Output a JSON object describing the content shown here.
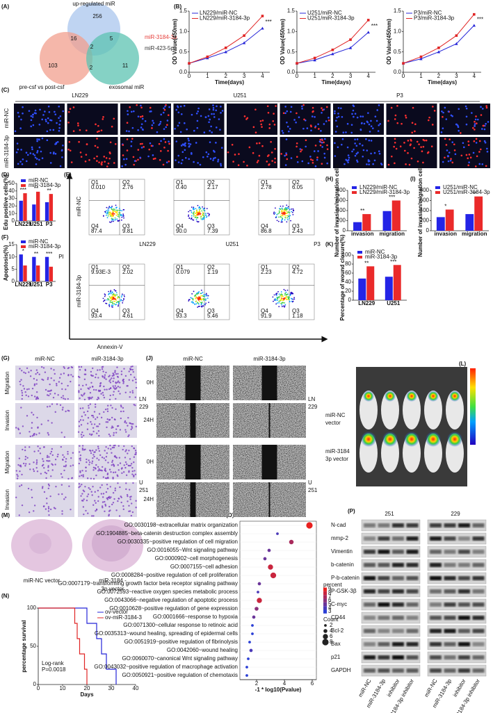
{
  "panel_labels": [
    "(A)",
    "(B)",
    "(C)",
    "(D)",
    "(E)",
    "(F)",
    "(G)",
    "(H)",
    "(I)",
    "(J)",
    "(K)",
    "(L)",
    "(M)",
    "(N)",
    "(O)",
    "(P)"
  ],
  "venn": {
    "sets": [
      "up-regulated miR",
      "pre-csf vs post-csf",
      "exosomal miR"
    ],
    "counts": [
      256,
      16,
      5,
      2,
      103,
      2,
      11
    ],
    "colors": [
      "#a9c6ee",
      "#f29f8e",
      "#5cc3b1"
    ]
  },
  "highlights": [
    {
      "text": "miR-3184-3p",
      "color": "#e53935"
    },
    {
      "text": "miR-423-5p",
      "color": "#333333"
    }
  ],
  "edu_images": {
    "columns": [
      "LN229",
      "U251",
      "P3"
    ],
    "rows": [
      "miR-NC",
      "miR-3184-3p"
    ]
  },
  "flow": {
    "rows": [
      "miR-NC",
      "miR-3184-3p"
    ],
    "columns": [
      "LN229",
      "U251",
      "P3"
    ],
    "ylabel": "PI",
    "xlabel": "Annexin-V",
    "quadrant_names": [
      "Q1",
      "Q2",
      "Q4",
      "Q3"
    ],
    "plots": [
      [
        [
          "0.010",
          "2.76",
          "87.4",
          "9.81"
        ],
        [
          "0.40",
          "2.17",
          "90.0",
          "7.39"
        ],
        [
          "2.78",
          "6.05",
          "86.8",
          "2.43"
        ]
      ],
      [
        [
          "9.93E-3",
          "2.02",
          "93.4",
          "4.61"
        ],
        [
          "0.079",
          "1.19",
          "93.3",
          "5.46"
        ],
        [
          "2.23",
          "4.72",
          "91.9",
          "1.18"
        ]
      ]
    ]
  },
  "transwell": {
    "columns": [
      "miR-NC",
      "miR-3184-3p"
    ],
    "rows": [
      "Migration",
      "Invasion",
      "Migration",
      "Invasion"
    ],
    "cell_lines": [
      [
        "LN",
        "229"
      ],
      [
        "U",
        "251"
      ]
    ]
  },
  "wound": {
    "columns": [
      "miR-NC",
      "miR-3184-3p"
    ],
    "rows": [
      "0H",
      "24H",
      "0H",
      "24H"
    ],
    "cell_lines": [
      [
        "LN",
        "229"
      ],
      [
        "U",
        "251"
      ]
    ]
  },
  "xenograft": {
    "groups": [
      [
        "miR-NC",
        "vector"
      ],
      [
        "miR-3184",
        "3p vector"
      ]
    ]
  },
  "brain": {
    "groups": [
      [
        "miR-NC vector"
      ],
      [
        "miR-3184 -",
        "3p vector"
      ]
    ]
  },
  "western": {
    "cell_lines": [
      "251",
      "229"
    ],
    "proteins": [
      "N-cad",
      "mmp-2",
      "Vimentin",
      "b-catenin",
      "P-b-catenin",
      "P-GSK-3β",
      "C-myc",
      "CD44",
      "Bcl-2",
      "Bax",
      "p21",
      "GAPDH"
    ],
    "lanes": [
      "miR-NC",
      "miR-3184-3p",
      "inhibitor",
      "miR-3184-3p inhibitor",
      "miR-NC",
      "miR-3184-3p",
      "inhibitor",
      "miR-3184-3p inhibitor"
    ]
  },
  "chart_data": [
    {
      "type": "line",
      "x": [
        0,
        1,
        2,
        3,
        4
      ],
      "xlim": [
        0,
        4.4
      ],
      "xticks": [
        0,
        1,
        2,
        3,
        4
      ],
      "ylim": [
        0,
        1.5
      ],
      "yticks": [
        {
          "value": 0,
          "label": "0.0"
        },
        {
          "value": 0.5,
          "label": "0.5"
        },
        {
          "value": 1,
          "label": "1.0"
        },
        {
          "value": 1.5,
          "label": "1.5"
        }
      ],
      "xlabel": "Time(days)",
      "ylabel": "OD Value(450nm)",
      "annotation": "***",
      "series": [
        {
          "name": "LN229/miR-NC",
          "color": "#2424d8",
          "marker": "triangle",
          "values": [
            0.22,
            0.35,
            0.5,
            0.72,
            1.08
          ]
        },
        {
          "name": "LN229/miR-3184-3p",
          "color": "#e02424",
          "marker": "square",
          "values": [
            0.22,
            0.38,
            0.6,
            0.9,
            1.38
          ]
        }
      ]
    },
    {
      "type": "line",
      "x": [
        0,
        1,
        2,
        3,
        4
      ],
      "xlim": [
        0,
        4.4
      ],
      "xticks": [
        0,
        1,
        2,
        3,
        4
      ],
      "ylim": [
        0,
        1.5
      ],
      "yticks": [
        {
          "value": 0,
          "label": "0.0"
        },
        {
          "value": 0.5,
          "label": "0.5"
        },
        {
          "value": 1,
          "label": "1.0"
        },
        {
          "value": 1.5,
          "label": "1.5"
        }
      ],
      "xlabel": "Time(days)",
      "ylabel": "OD Value(450nm)",
      "annotation": "***",
      "series": [
        {
          "name": "U251/miR-NC",
          "color": "#2424d8",
          "marker": "triangle",
          "values": [
            0.22,
            0.3,
            0.45,
            0.6,
            0.98
          ]
        },
        {
          "name": "U251/miR-3184-3p",
          "color": "#e02424",
          "marker": "square",
          "values": [
            0.22,
            0.35,
            0.55,
            0.8,
            1.28
          ]
        }
      ]
    },
    {
      "type": "line",
      "x": [
        0,
        1,
        2,
        3,
        4
      ],
      "xlim": [
        0,
        4.4
      ],
      "xticks": [
        0,
        1,
        2,
        3,
        4
      ],
      "ylim": [
        0,
        1.5
      ],
      "yticks": [
        {
          "value": 0,
          "label": "0.0"
        },
        {
          "value": 0.5,
          "label": "0.5"
        },
        {
          "value": 1,
          "label": "1.0"
        },
        {
          "value": 1.5,
          "label": "1.5"
        }
      ],
      "xlabel": "Time(days)",
      "ylabel": "OD Value(450nm)",
      "annotation": "***",
      "series": [
        {
          "name": "P3/miR-NC",
          "color": "#2424d8",
          "marker": "triangle",
          "values": [
            0.22,
            0.33,
            0.5,
            0.7,
            1.15
          ]
        },
        {
          "name": "P3/miR-3184-3p",
          "color": "#e02424",
          "marker": "square",
          "values": [
            0.22,
            0.38,
            0.6,
            0.9,
            1.42
          ]
        }
      ]
    },
    {
      "type": "bar",
      "categories": [
        "LN229",
        "U251",
        "P3"
      ],
      "ylim": [
        0,
        50
      ],
      "yticks": [
        0,
        10,
        20,
        30,
        40,
        50
      ],
      "ylabel": "Edu positive cells(%)",
      "annotations": [
        "***",
        "**",
        "**"
      ],
      "series": [
        {
          "name": "miR-NC",
          "color": "#2424e6",
          "values": [
            27,
            22,
            25
          ]
        },
        {
          "name": "miR-3184-3p",
          "color": "#ea2a2a",
          "values": [
            37,
            39,
            36
          ]
        }
      ]
    },
    {
      "type": "bar",
      "categories": [
        "LN229",
        "U251",
        "P3"
      ],
      "ylim": [
        0,
        15
      ],
      "yticks": [
        0,
        5,
        10,
        15
      ],
      "ylabel": "Apoptosis(%)",
      "annotations": [
        "*",
        "**",
        "***"
      ],
      "series": [
        {
          "name": "miR-NC",
          "color": "#2424e6",
          "values": [
            11,
            10,
            10
          ]
        },
        {
          "name": "miR-3184-3p",
          "color": "#ea2a2a",
          "values": [
            6.5,
            6.5,
            6
          ]
        }
      ]
    },
    {
      "type": "bar",
      "categories": [
        "invasion",
        "migration"
      ],
      "ylim": [
        0,
        800
      ],
      "yticks": [
        0,
        200,
        400,
        600,
        800
      ],
      "ylabel": "Number of invasion/migration cells",
      "annotations": [
        "**",
        "***"
      ],
      "series": [
        {
          "name": "LN229/miR-NC",
          "color": "#2424e6",
          "values": [
            170,
            390
          ]
        },
        {
          "name": "LN229/miR-3184-3p",
          "color": "#ea2a2a",
          "values": [
            330,
            600
          ]
        }
      ]
    },
    {
      "type": "bar",
      "categories": [
        "invasion",
        "migration"
      ],
      "ylim": [
        0,
        800
      ],
      "yticks": [
        0,
        200,
        400,
        600,
        800
      ],
      "ylabel": "Number of invasion/migration cells",
      "annotations": [
        "*",
        "**"
      ],
      "series": [
        {
          "name": "U251/miR-NC",
          "color": "#2424e6",
          "values": [
            270,
            330
          ]
        },
        {
          "name": "U251/miR-3184-3p",
          "color": "#ea2a2a",
          "values": [
            420,
            680
          ]
        }
      ]
    },
    {
      "type": "bar",
      "categories": [
        "LN229",
        "U251"
      ],
      "ylim": [
        0,
        100
      ],
      "yticks": [
        0,
        20,
        40,
        60,
        80,
        100
      ],
      "ylabel": "Percentage of wound closure(%)",
      "annotations": [
        "**",
        "***"
      ],
      "series": [
        {
          "name": "miR-NC",
          "color": "#2424e6",
          "values": [
            48,
            52
          ]
        },
        {
          "name": "miR-3184-3p",
          "color": "#ea2a2a",
          "values": [
            75,
            78
          ]
        }
      ]
    },
    {
      "type": "step",
      "xlim": [
        0,
        40
      ],
      "xticks": [
        0,
        10,
        20,
        30,
        40
      ],
      "ylim": [
        0,
        100
      ],
      "yticks": [
        0,
        50,
        100
      ],
      "xlabel": "Days",
      "ylabel": "percentage survival",
      "annotations": [
        "Log-rank",
        "P=0.0018"
      ],
      "series": [
        {
          "name": "ov-vector",
          "color": "#2424d8",
          "x": [
            0,
            20,
            24,
            26,
            28,
            32
          ],
          "values": [
            100,
            80,
            60,
            40,
            20,
            0
          ]
        },
        {
          "name": "ov-miR-3184-3",
          "color": "#e02424",
          "x": [
            0,
            15,
            16,
            17,
            19,
            20
          ],
          "values": [
            100,
            80,
            60,
            40,
            20,
            0
          ]
        }
      ]
    },
    {
      "type": "dot",
      "xlim": [
        0.8,
        6.3
      ],
      "xticks": [
        2,
        4,
        6
      ],
      "xlabel": "-1 * log10(Pvalue)",
      "legend_titles": [
        "percent",
        "Count"
      ],
      "percent_ticks": [
        3,
        4,
        5,
        6,
        7,
        8,
        9
      ],
      "count_ticks": [
        2,
        4,
        6,
        8
      ],
      "color_low": "#2b3fd6",
      "color_high": "#e8201f",
      "categories": [
        "GO:0030198~extracellular matrix organization",
        "GO:1904885~beta-catenin destruction complex assembly",
        "GO:0030335~positive regulation of cell migration",
        "GO:0016055~Wnt signaling pathway",
        "GO:0000902~cell morphogenesis",
        "GO:0007155~cell adhesion",
        "GO:0008284~positive regulation of cell proliferation",
        "GO:0007179~transforming growth factor beta receptor signaling pathway",
        "GO:0072593~reactive oxygen species metabolic process",
        "GO:0043066~negative regulation of apoptotic process",
        "GO:0010628~positive regulation of gene expression",
        "GO:0001666~response to hypoxia",
        "GO:0071300~cellular response to retinoic acid",
        "GO:0035313~wound healing, spreading of epidermal cells",
        "GO:0051919~positive regulation of fibrinolysis",
        "GO:0042060~wound healing",
        "GO:0060070~canonical Wnt signaling pathway",
        "GO:0043032~positive regulation of macrophage activation",
        "GO:0050921~positive regulation of chemotaxis"
      ],
      "values": [
        5.8,
        3.5,
        4.5,
        2.9,
        2.6,
        3.0,
        3.2,
        2.2,
        2.1,
        2.2,
        2.0,
        1.8,
        1.7,
        1.7,
        1.5,
        1.6,
        1.4,
        1.3,
        1.3
      ],
      "sizes": [
        8,
        2,
        5,
        3,
        3,
        6,
        7,
        3,
        2,
        6,
        4,
        3,
        2,
        2,
        2,
        3,
        2,
        2,
        2
      ],
      "percent": [
        9,
        4,
        7,
        5,
        5,
        8,
        8,
        5,
        4,
        8,
        6,
        5,
        3,
        3,
        3,
        4,
        3,
        3,
        3
      ]
    }
  ]
}
